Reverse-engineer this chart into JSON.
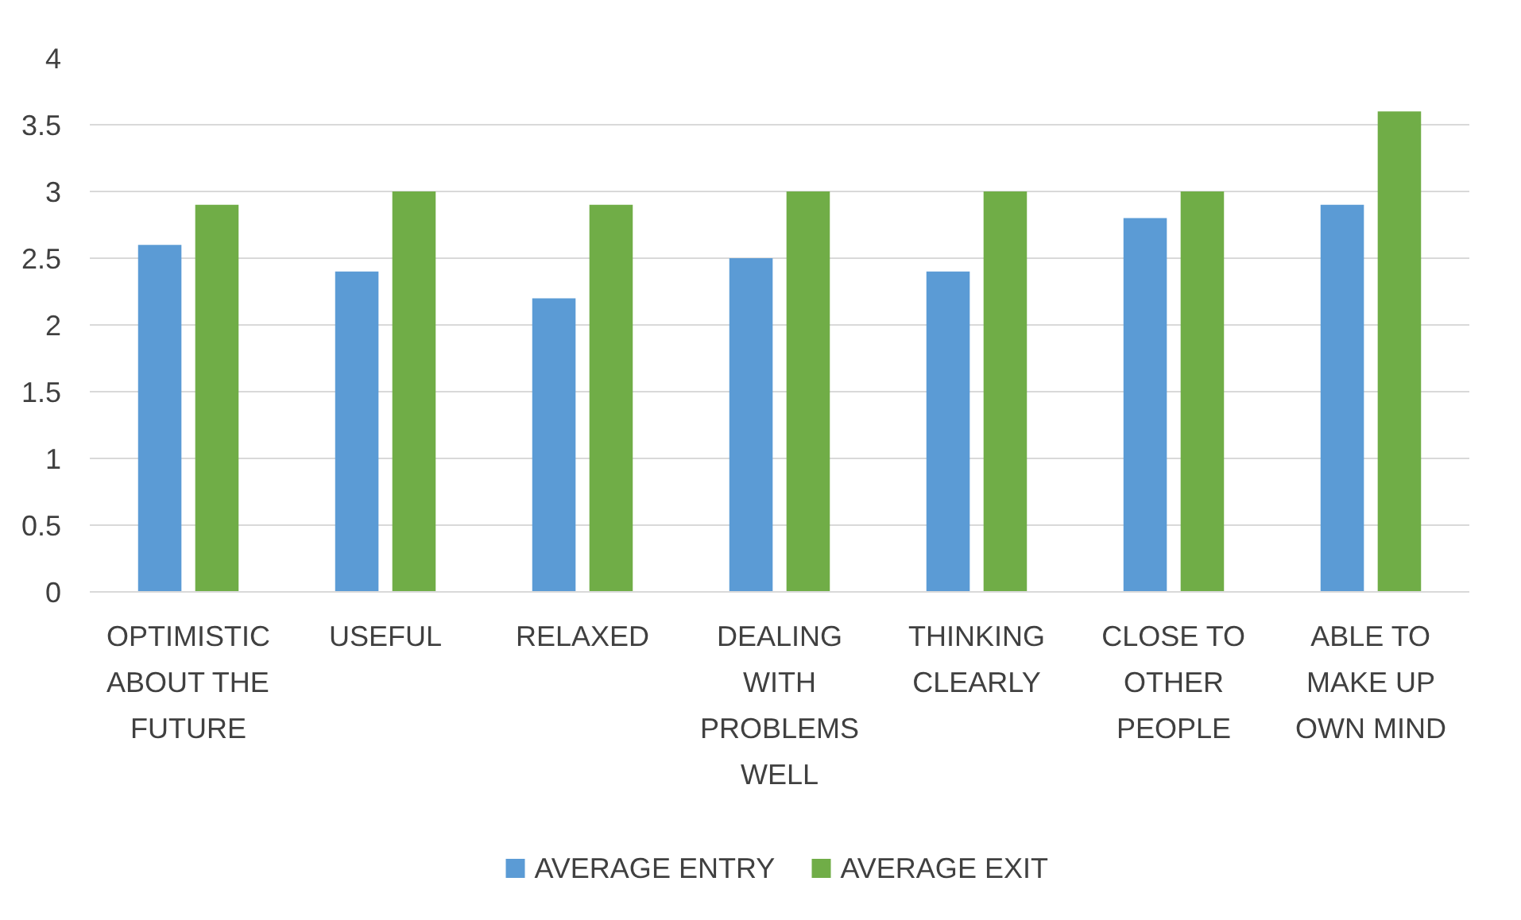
{
  "chart_data": {
    "type": "bar",
    "categories": [
      "OPTIMISTIC ABOUT THE FUTURE",
      "USEFUL",
      "RELAXED",
      "DEALING WITH PROBLEMS WELL",
      "THINKING CLEARLY",
      "CLOSE TO OTHER PEOPLE",
      "ABLE TO MAKE UP OWN MIND"
    ],
    "series": [
      {
        "name": "AVERAGE ENTRY",
        "color": "#5b9bd5",
        "values": [
          2.6,
          2.4,
          2.2,
          2.5,
          2.4,
          2.8,
          2.9
        ]
      },
      {
        "name": "AVERAGE EXIT",
        "color": "#70ad47",
        "values": [
          2.9,
          3.0,
          2.9,
          3.0,
          3.0,
          3.0,
          3.6
        ]
      }
    ],
    "ylim": [
      0,
      4
    ],
    "yticks": [
      0,
      0.5,
      1,
      1.5,
      2,
      2.5,
      3,
      3.5,
      4
    ],
    "grid": "y",
    "legend": "bottom"
  }
}
